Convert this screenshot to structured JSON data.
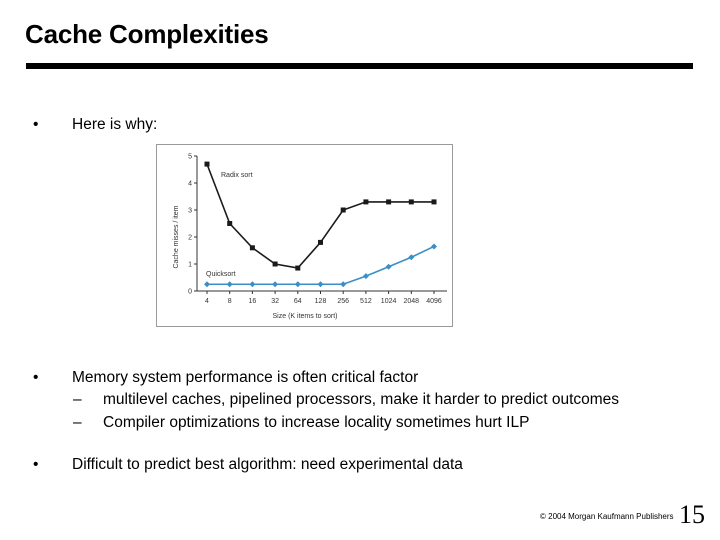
{
  "slide": {
    "title": "Cache Complexities",
    "bullets": [
      {
        "marker": "•",
        "text": "Here is why:"
      },
      {
        "marker": "•",
        "text": "Memory system performance is often critical factor",
        "sub": [
          {
            "marker": "–",
            "text": "multilevel caches, pipelined processors,  make it harder to predict outcomes"
          },
          {
            "marker": "–",
            "text": "Compiler optimizations to increase locality sometimes hurt ILP"
          }
        ]
      },
      {
        "marker": "•",
        "text": "Difficult to predict best algorithm:  need experimental data"
      }
    ],
    "copyright": "© 2004 Morgan Kaufmann Publishers",
    "page_number": "15"
  },
  "chart_data": {
    "type": "line",
    "xlabel": "Size (K items to sort)",
    "ylabel": "Cache misses / item",
    "categories": [
      "4",
      "8",
      "16",
      "32",
      "64",
      "128",
      "256",
      "512",
      "1024",
      "2048",
      "4096"
    ],
    "ylim": [
      0,
      5
    ],
    "yticks": [
      "0",
      "1",
      "2",
      "3",
      "4",
      "5"
    ],
    "series": [
      {
        "name": "Radix sort",
        "color": "#1a1a1a",
        "marker": "square",
        "values": [
          4.7,
          2.5,
          1.6,
          1.0,
          0.85,
          1.8,
          3.0,
          3.3,
          3.3,
          3.3,
          3.3
        ]
      },
      {
        "name": "Quicksort",
        "color": "#3a8fc8",
        "marker": "diamond",
        "values": [
          0.25,
          0.25,
          0.25,
          0.25,
          0.25,
          0.25,
          0.25,
          0.55,
          0.9,
          1.25,
          1.65
        ]
      }
    ]
  }
}
